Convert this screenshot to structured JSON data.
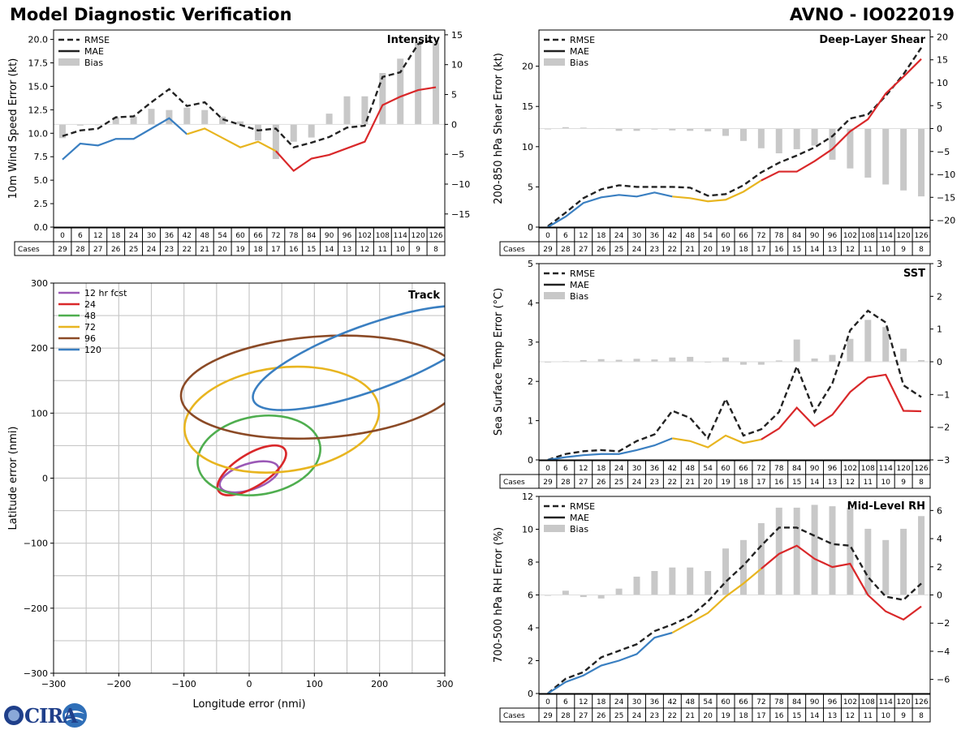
{
  "header": {
    "title_left": "Model Diagnostic Verification",
    "title_right": "AVNO - IO022019"
  },
  "logo": {
    "text": "CIRA"
  },
  "table": {
    "hours": [
      "0",
      "6",
      "12",
      "18",
      "24",
      "30",
      "36",
      "42",
      "48",
      "54",
      "60",
      "66",
      "72",
      "78",
      "84",
      "90",
      "96",
      "102",
      "108",
      "114",
      "120",
      "126"
    ],
    "cases_label": "Cases",
    "cases": [
      "29",
      "28",
      "27",
      "26",
      "25",
      "24",
      "23",
      "22",
      "21",
      "20",
      "19",
      "18",
      "17",
      "16",
      "15",
      "14",
      "13",
      "12",
      "11",
      "10",
      "9",
      "8"
    ]
  },
  "legend_labels": {
    "rmse": "RMSE",
    "mae": "MAE",
    "bias": "Bias"
  },
  "colors": {
    "rmse": "#222222",
    "bias": "#c8c8c8",
    "mae_early": "#3a7fc1",
    "mae_mid": "#e8b520",
    "mae_late": "#d9282a",
    "track_12": "#9b59b6",
    "track_24": "#d9282a",
    "track_48": "#4fae4f",
    "track_72": "#e8b520",
    "track_96": "#8b4a26",
    "track_120": "#3a7fc1",
    "grid": "#c8c8c8"
  },
  "chart_data": [
    {
      "id": "intensity",
      "type": "line",
      "title": "Intensity",
      "ylabel": "10m Wind Speed Error (kt)",
      "ylim": [
        0,
        21
      ],
      "yticks": [
        "0.0",
        "2.5",
        "5.0",
        "7.5",
        "10.0",
        "12.5",
        "15.0",
        "17.5",
        "20.0"
      ],
      "ytick_values": [
        0,
        2.5,
        5,
        7.5,
        10,
        12.5,
        15,
        17.5,
        20
      ],
      "y2lim": [
        -17.2,
        15.8
      ],
      "y2ticks": [
        "−15",
        "−10",
        "−5",
        "0",
        "5",
        "10",
        "15"
      ],
      "y2tick_values": [
        -15,
        -10,
        -5,
        0,
        5,
        10,
        15
      ],
      "x": [
        0,
        6,
        12,
        18,
        24,
        30,
        36,
        42,
        48,
        54,
        60,
        66,
        72,
        78,
        84,
        90,
        96,
        102,
        108,
        114,
        120,
        126
      ],
      "rmse": [
        9.7,
        10.3,
        10.5,
        11.7,
        11.8,
        13.3,
        14.7,
        12.9,
        13.3,
        11.5,
        10.9,
        10.3,
        10.5,
        8.5,
        9.0,
        9.6,
        10.6,
        10.8,
        16.0,
        16.5,
        19.5,
        20.0
      ],
      "mae": [
        7.2,
        8.9,
        8.7,
        9.4,
        9.4,
        10.5,
        11.6,
        9.9,
        10.5,
        9.5,
        8.5,
        9.1,
        8.1,
        6.0,
        7.3,
        7.7,
        8.4,
        9.1,
        13.0,
        13.9,
        14.6,
        14.9
      ],
      "bias": [
        -2.3,
        -0.2,
        -0.1,
        1.2,
        1.3,
        2.6,
        2.4,
        2.8,
        2.4,
        1.3,
        0.5,
        -2.7,
        -5.8,
        -2.9,
        -2.2,
        1.8,
        4.7,
        4.7,
        8.6,
        11.0,
        13.8,
        13.7
      ],
      "legend": "top-left"
    },
    {
      "id": "shear",
      "type": "line",
      "title": "Deep-Layer Shear",
      "ylabel": "200-850 hPa Shear Error (kt)",
      "ylim": [
        0,
        24.5
      ],
      "yticks": [
        "0",
        "5",
        "10",
        "15",
        "20"
      ],
      "ytick_values": [
        0,
        5,
        10,
        15,
        20
      ],
      "y2lim": [
        -21.5,
        21.5
      ],
      "y2ticks": [
        "−20",
        "−15",
        "−10",
        "−5",
        "0",
        "5",
        "10",
        "15",
        "20"
      ],
      "y2tick_values": [
        -20,
        -15,
        -10,
        -5,
        0,
        5,
        10,
        15,
        20
      ],
      "x": [
        0,
        6,
        12,
        18,
        24,
        30,
        36,
        42,
        48,
        54,
        60,
        66,
        72,
        78,
        84,
        90,
        96,
        102,
        108,
        114,
        120,
        126
      ],
      "rmse": [
        0.1,
        1.8,
        3.6,
        4.7,
        5.2,
        5.0,
        5.0,
        5.0,
        4.9,
        3.9,
        4.1,
        5.2,
        6.8,
        8.0,
        8.9,
        9.9,
        11.3,
        13.5,
        14.0,
        16.3,
        19.0,
        22.3
      ],
      "mae": [
        0.0,
        1.3,
        3.0,
        3.7,
        4.0,
        3.8,
        4.3,
        3.8,
        3.6,
        3.2,
        3.4,
        4.4,
        5.8,
        6.9,
        6.9,
        8.2,
        9.7,
        11.9,
        13.4,
        16.6,
        18.7,
        20.9
      ],
      "bias": [
        0.0,
        0.3,
        0.2,
        0.1,
        -0.5,
        -0.5,
        -0.2,
        -0.4,
        -0.5,
        -0.6,
        -1.6,
        -2.7,
        -4.3,
        -5.4,
        -4.5,
        -3.7,
        -6.8,
        -8.7,
        -10.7,
        -12.2,
        -13.5,
        -14.8
      ],
      "legend": "top-left"
    },
    {
      "id": "sst",
      "type": "line",
      "title": "SST",
      "ylabel": "Sea Surface Temp Error (°C)",
      "ylim": [
        0,
        5
      ],
      "yticks": [
        "0",
        "1",
        "2",
        "3",
        "4",
        "5"
      ],
      "ytick_values": [
        0,
        1,
        2,
        3,
        4,
        5
      ],
      "y2lim": [
        -3,
        3
      ],
      "y2ticks": [
        "−3",
        "−2",
        "−1",
        "0",
        "1",
        "2",
        "3"
      ],
      "y2tick_values": [
        -3,
        -2,
        -1,
        0,
        1,
        2,
        3
      ],
      "x": [
        0,
        6,
        12,
        18,
        24,
        30,
        36,
        42,
        48,
        54,
        60,
        66,
        72,
        78,
        84,
        90,
        96,
        102,
        108,
        114,
        120,
        126
      ],
      "rmse": [
        0.0,
        0.15,
        0.22,
        0.25,
        0.22,
        0.48,
        0.65,
        1.25,
        1.07,
        0.55,
        1.55,
        0.62,
        0.78,
        1.22,
        2.38,
        1.22,
        1.95,
        3.3,
        3.8,
        3.5,
        1.9,
        1.6
      ],
      "mae": [
        0.0,
        0.07,
        0.12,
        0.15,
        0.15,
        0.25,
        0.37,
        0.55,
        0.48,
        0.32,
        0.62,
        0.43,
        0.52,
        0.8,
        1.33,
        0.86,
        1.15,
        1.73,
        2.1,
        2.17,
        1.25,
        1.24
      ],
      "bias": [
        0.0,
        0.02,
        0.05,
        0.08,
        0.06,
        0.09,
        0.07,
        0.13,
        0.15,
        0.0,
        0.13,
        -0.09,
        -0.09,
        0.04,
        0.68,
        0.1,
        0.21,
        0.7,
        1.28,
        1.06,
        0.4,
        0.05
      ],
      "legend": "top-left"
    },
    {
      "id": "rh",
      "type": "line",
      "title": "Mid-Level RH",
      "ylabel": "700-500 hPa RH Error (%)",
      "ylim": [
        0,
        12
      ],
      "yticks": [
        "0",
        "2",
        "4",
        "6",
        "8",
        "10",
        "12"
      ],
      "ytick_values": [
        0,
        2,
        4,
        6,
        8,
        10,
        12
      ],
      "y2lim": [
        -7,
        7
      ],
      "y2ticks": [
        "−6",
        "−4",
        "−2",
        "0",
        "2",
        "4",
        "6"
      ],
      "y2tick_values": [
        -6,
        -4,
        -2,
        0,
        2,
        4,
        6
      ],
      "x": [
        0,
        6,
        12,
        18,
        24,
        30,
        36,
        42,
        48,
        54,
        60,
        66,
        72,
        78,
        84,
        90,
        96,
        102,
        108,
        114,
        120,
        126
      ],
      "rmse": [
        0.0,
        0.9,
        1.3,
        2.2,
        2.6,
        3.0,
        3.8,
        4.2,
        4.7,
        5.6,
        6.8,
        7.8,
        9.0,
        10.1,
        10.1,
        9.6,
        9.1,
        9.0,
        7.1,
        5.9,
        5.7,
        6.7
      ],
      "mae": [
        0.0,
        0.7,
        1.1,
        1.7,
        2.0,
        2.4,
        3.4,
        3.7,
        4.3,
        4.9,
        5.9,
        6.7,
        7.6,
        8.5,
        9.0,
        8.2,
        7.7,
        7.9,
        6.0,
        5.0,
        4.5,
        5.3
      ],
      "bias": [
        0.0,
        0.3,
        -0.15,
        -0.25,
        0.45,
        1.3,
        1.7,
        1.95,
        1.95,
        1.7,
        3.3,
        3.9,
        5.1,
        6.2,
        6.2,
        6.4,
        6.3,
        6.2,
        4.7,
        3.9,
        4.7,
        5.6
      ],
      "legend": "top-left"
    },
    {
      "id": "track",
      "type": "scatter",
      "title": "Track",
      "xlabel": "Longitude error (nmi)",
      "ylabel": "Latitude error (nmi)",
      "xlim": [
        -300,
        300
      ],
      "ylim": [
        -300,
        300
      ],
      "xticks": [
        "−300",
        "−200",
        "−100",
        "0",
        "100",
        "200",
        "300"
      ],
      "xtick_values": [
        -300,
        -200,
        -100,
        0,
        100,
        200,
        300
      ],
      "yticks": [
        "−300",
        "−200",
        "−100",
        "0",
        "100",
        "200",
        "300"
      ],
      "ytick_values": [
        -300,
        -200,
        -100,
        0,
        100,
        200,
        300
      ],
      "ellipses": [
        {
          "label": "12 hr fcst",
          "cx": 0,
          "cy": 2,
          "rx": 47,
          "ry": 20,
          "angle": 18
        },
        {
          "label": "24",
          "cx": 4,
          "cy": 12,
          "rx": 60,
          "ry": 25,
          "angle": 32
        },
        {
          "label": "48",
          "cx": 15,
          "cy": 35,
          "rx": 95,
          "ry": 60,
          "angle": 10
        },
        {
          "label": "72",
          "cx": 50,
          "cy": 90,
          "rx": 150,
          "ry": 80,
          "angle": 7
        },
        {
          "label": "96",
          "cx": 110,
          "cy": 140,
          "rx": 215,
          "ry": 78,
          "angle": 4
        },
        {
          "label": "120",
          "cx": 185,
          "cy": 185,
          "rx": 190,
          "ry": 50,
          "angle": 20
        }
      ],
      "legend": "top-left"
    }
  ]
}
